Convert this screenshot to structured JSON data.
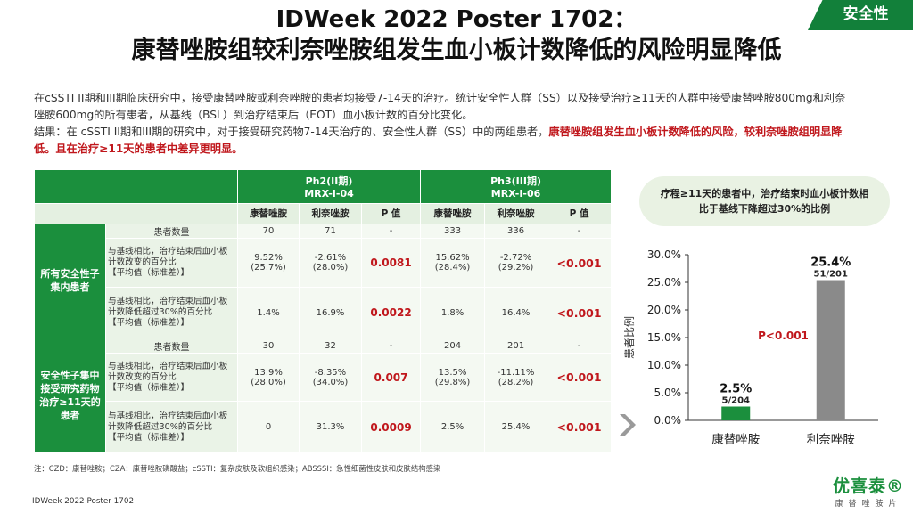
{
  "title_line1": "IDWeek 2022 Poster 1702：",
  "title_line2": "康替唑胺组较利奈唑胺组发生血小板计数降低的风险明显降低",
  "badge": "安全性",
  "intro": {
    "line1": "在cSSTI II期和III期临床研究中，接受康替唑胺或利奈唑胺的患者均接受7-14天的治疗。统计安全性人群（SS）以及接受治疗≥11天的人群中接受康替唑胺800mg和利奈",
    "line2": "唑胺600mg的所有患者，从基线（BSL）到治疗结束后（EOT）血小板计数的百分比变化。",
    "line3_plain": "结果：在 cSSTI II期和III期的研究中，对于接受研究药物7-14天治疗的、安全性人群（SS）中的两组患者，",
    "line3_red": "康替唑胺组发生血小板计数降低的风险，较利奈唑胺组明显降",
    "line4_red": "低。且在治疗≥11天的患者中差异更明显。"
  },
  "table": {
    "ph2": "Ph2(II期)",
    "ph2_code": "MRX-I-04",
    "ph3": "Ph3(III期)",
    "ph3_code": "MRX-I-06",
    "col_contezolid": "康替唑胺",
    "col_linezolid": "利奈唑胺",
    "col_p": "P 值",
    "group1": "所有安全性子集内患者",
    "group2": "安全性子集中接受研究药物治疗≥11天的患者",
    "row_count": "患者数量",
    "metric1_a": "与基线相比，治疗结束后血小板计数改变的百分比",
    "metric1_b": "【平均值（标准差）】",
    "metric2_a": "与基线相比，治疗结束后血小板计数降低超过30%的百分比",
    "metric2_b": "【平均值（标准差）】",
    "g1": {
      "count": [
        "70",
        "71",
        "-",
        "333",
        "336",
        "-"
      ],
      "m1": [
        [
          "9.52%",
          "(25.7%)"
        ],
        [
          "-2.61%",
          "(28.0%)"
        ],
        [
          "0.0081"
        ],
        [
          "15.62%",
          "(28.4%)"
        ],
        [
          "-2.72%",
          "(29.2%)"
        ],
        [
          "<0.001"
        ]
      ],
      "m2": [
        "1.4%",
        "16.9%",
        "0.0022",
        "1.8%",
        "16.4%",
        "<0.001"
      ]
    },
    "g2": {
      "count": [
        "30",
        "32",
        "-",
        "204",
        "201",
        "-"
      ],
      "m1": [
        [
          "13.9%",
          "(28.0%)"
        ],
        [
          "-8.35%",
          "(34.0%)"
        ],
        [
          "0.007"
        ],
        [
          "13.5%",
          "(29.8%)"
        ],
        [
          "-11.11%",
          "(28.2%)"
        ],
        [
          "<0.001"
        ]
      ],
      "m2": [
        "0",
        "31.3%",
        "0.0009",
        "2.5%",
        "25.4%",
        "<0.001"
      ]
    }
  },
  "note": "注：CZD：康替唑胺；CZA：康替唑胺磷酸盐；cSSTI：复杂皮肤及软组织感染；ABSSSI：急性细菌性皮肤和皮肤结构感染",
  "footer": "IDWeek 2022 Poster 1702",
  "callout": "疗程≥11天的患者中，治疗结束时血小板计数相比于基线下降超过30%的比例",
  "logo_main": "优喜泰®",
  "logo_sub": "康替唑胺片",
  "colors": {
    "green": "#1b8f3d",
    "grey": "#8a8a8a",
    "red": "#c0171c"
  },
  "chart_data": {
    "type": "bar",
    "categories": [
      "康替唑胺",
      "利奈唑胺"
    ],
    "values": [
      2.5,
      25.4
    ],
    "value_labels": [
      "2.5%",
      "25.4%"
    ],
    "n_labels": [
      "5/204",
      "51/201"
    ],
    "bar_colors": [
      "#1b8f3d",
      "#8a8a8a"
    ],
    "ylabel": "患者比例",
    "ylim": [
      0,
      30
    ],
    "yticks": [
      "0.0%",
      "5.0%",
      "10.0%",
      "15.0%",
      "20.0%",
      "25.0%",
      "30.0%"
    ],
    "annotation": "P<0.001",
    "grid": false
  }
}
